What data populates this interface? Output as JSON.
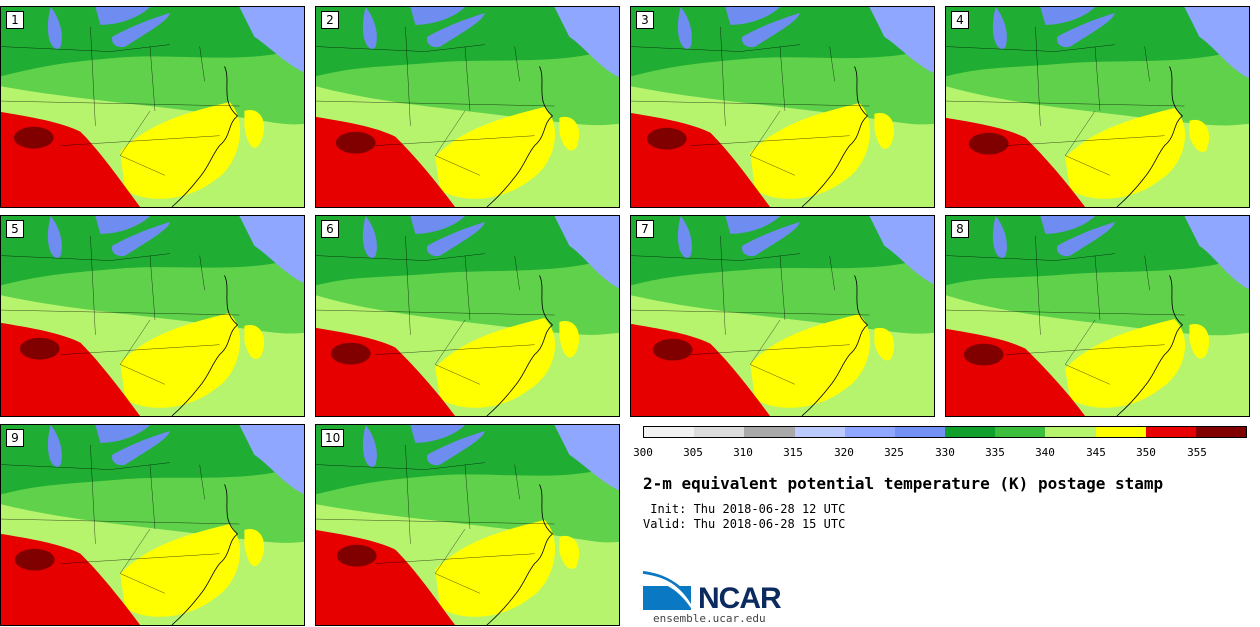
{
  "panels": [
    {
      "label": "1"
    },
    {
      "label": "2"
    },
    {
      "label": "3"
    },
    {
      "label": "4"
    },
    {
      "label": "5"
    },
    {
      "label": "6"
    },
    {
      "label": "7"
    },
    {
      "label": "8"
    },
    {
      "label": "9"
    },
    {
      "label": "10"
    }
  ],
  "colorbar": {
    "ticks": [
      "300",
      "305",
      "310",
      "315",
      "320",
      "325",
      "330",
      "335",
      "340",
      "345",
      "350",
      "355"
    ],
    "colors": [
      "#f2f2f2",
      "#dcdcdc",
      "#a9a9a9",
      "#bccbff",
      "#8fa7ff",
      "#7390f5",
      "#0f9f2b",
      "#3dbd3d",
      "#b7f46e",
      "#ffff00",
      "#e60000",
      "#800000"
    ]
  },
  "title": "2-m equivalent potential temperature (K) postage stamp",
  "init": " Init: Thu 2018-06-28 12 UTC",
  "valid": "Valid: Thu 2018-06-28 15 UTC",
  "logo_text": "NCAR",
  "url": "ensemble.ucar.edu",
  "colors": {
    "lake_blue": "#6f8cf0",
    "ocean_blue": "#8fa7ff",
    "dark_green": "#1fae33",
    "green": "#5fd14a",
    "light_green": "#b7f46e",
    "yellow": "#ffff00",
    "red": "#e60000",
    "dark_red": "#800000",
    "ncar_navy": "#0b2a5e",
    "ncar_blue": "#0a78c2"
  }
}
